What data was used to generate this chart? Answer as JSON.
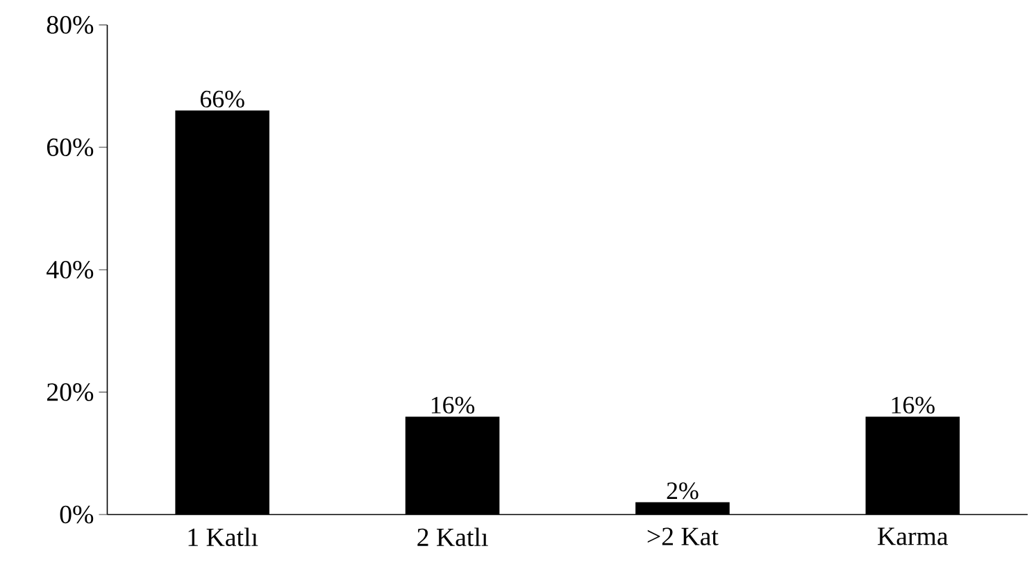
{
  "chart_data": {
    "type": "bar",
    "categories": [
      "1 Katlı",
      "2 Katlı",
      ">2 Kat",
      "Karma"
    ],
    "values": [
      66,
      16,
      2,
      16
    ],
    "value_labels": [
      "66%",
      "16%",
      "2%",
      "16%"
    ],
    "color": "#000000",
    "ylim": [
      0,
      80
    ],
    "yticks": [
      {
        "value": 0,
        "label": "0%"
      },
      {
        "value": 20,
        "label": "20%"
      },
      {
        "value": 40,
        "label": "40%"
      },
      {
        "value": 60,
        "label": "60%"
      },
      {
        "value": 80,
        "label": "80%"
      }
    ]
  }
}
